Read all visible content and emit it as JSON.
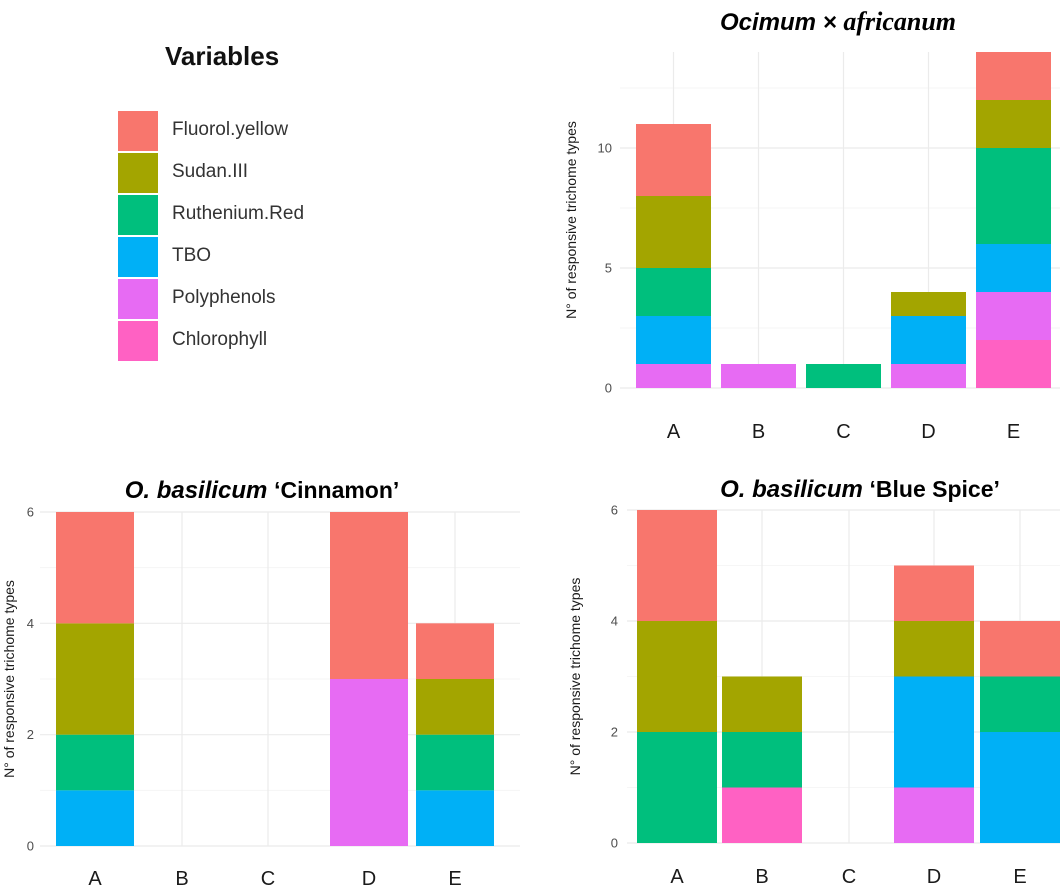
{
  "legend": {
    "title": "Variables",
    "items": [
      {
        "label": "Fluorol.yellow",
        "color": "#F8766D"
      },
      {
        "label": "Sudan.III",
        "color": "#A3A500"
      },
      {
        "label": "Ruthenium.Red",
        "color": "#00BF7D"
      },
      {
        "label": "TBO",
        "color": "#00B0F6"
      },
      {
        "label": "Polyphenols",
        "color": "#E76BF3"
      },
      {
        "label": "Chlorophyll",
        "color": "#FF61C3"
      }
    ]
  },
  "chart_data": [
    {
      "type": "bar",
      "stacked": true,
      "title_parts": [
        {
          "text": "Ocimum × ",
          "style": "sans"
        },
        {
          "text": "africanum",
          "style": "serif"
        }
      ],
      "categories": [
        "A",
        "B",
        "C",
        "D",
        "E"
      ],
      "ylabel": "N° of responsive trichome types",
      "xlabel": "",
      "ylim": [
        0,
        14
      ],
      "yticks": [
        0,
        5,
        10
      ],
      "grid": true,
      "series": [
        {
          "name": "Chlorophyll",
          "color": "#FF61C3",
          "values": [
            0,
            0,
            0,
            0,
            2
          ]
        },
        {
          "name": "Polyphenols",
          "color": "#E76BF3",
          "values": [
            1,
            1,
            0,
            1,
            2
          ]
        },
        {
          "name": "TBO",
          "color": "#00B0F6",
          "values": [
            2,
            0,
            0,
            2,
            2
          ]
        },
        {
          "name": "Ruthenium.Red",
          "color": "#00BF7D",
          "values": [
            2,
            0,
            1,
            0,
            4
          ]
        },
        {
          "name": "Sudan.III",
          "color": "#A3A500",
          "values": [
            3,
            0,
            0,
            1,
            2
          ]
        },
        {
          "name": "Fluorol.yellow",
          "color": "#F8766D",
          "values": [
            3,
            0,
            0,
            0,
            2
          ]
        }
      ]
    },
    {
      "type": "bar",
      "stacked": true,
      "title_parts": [
        {
          "text": "O. basilicum ",
          "style": "italic"
        },
        {
          "text": "‘Cinnamon’",
          "style": "normal"
        }
      ],
      "categories": [
        "A",
        "B",
        "C",
        "D",
        "E"
      ],
      "ylabel": "N° of responsive trichome types",
      "xlabel": "",
      "ylim": [
        0,
        6
      ],
      "yticks": [
        0,
        2,
        4,
        6
      ],
      "grid": true,
      "series": [
        {
          "name": "Chlorophyll",
          "color": "#FF61C3",
          "values": [
            0,
            0,
            0,
            0,
            0
          ]
        },
        {
          "name": "Polyphenols",
          "color": "#E76BF3",
          "values": [
            0,
            0,
            0,
            3,
            0
          ]
        },
        {
          "name": "TBO",
          "color": "#00B0F6",
          "values": [
            1,
            0,
            0,
            0,
            1
          ]
        },
        {
          "name": "Ruthenium.Red",
          "color": "#00BF7D",
          "values": [
            1,
            0,
            0,
            0,
            1
          ]
        },
        {
          "name": "Sudan.III",
          "color": "#A3A500",
          "values": [
            2,
            0,
            0,
            0,
            1
          ]
        },
        {
          "name": "Fluorol.yellow",
          "color": "#F8766D",
          "values": [
            2,
            0,
            0,
            3,
            1
          ]
        }
      ]
    },
    {
      "type": "bar",
      "stacked": true,
      "title_parts": [
        {
          "text": "O. basilicum ",
          "style": "italic"
        },
        {
          "text": "‘Blue Spice’",
          "style": "normal"
        }
      ],
      "categories": [
        "A",
        "B",
        "C",
        "D",
        "E"
      ],
      "ylabel": "N° of responsive trichome types",
      "xlabel": "",
      "ylim": [
        0,
        6
      ],
      "yticks": [
        0,
        2,
        4,
        6
      ],
      "grid": true,
      "series": [
        {
          "name": "Chlorophyll",
          "color": "#FF61C3",
          "values": [
            0,
            1,
            0,
            0,
            0
          ]
        },
        {
          "name": "Polyphenols",
          "color": "#E76BF3",
          "values": [
            0,
            0,
            0,
            1,
            0
          ]
        },
        {
          "name": "TBO",
          "color": "#00B0F6",
          "values": [
            0,
            0,
            0,
            2,
            2
          ]
        },
        {
          "name": "Ruthenium.Red",
          "color": "#00BF7D",
          "values": [
            2,
            1,
            0,
            0,
            1
          ]
        },
        {
          "name": "Sudan.III",
          "color": "#A3A500",
          "values": [
            2,
            1,
            0,
            1,
            0
          ]
        },
        {
          "name": "Fluorol.yellow",
          "color": "#F8766D",
          "values": [
            2,
            0,
            0,
            1,
            1
          ]
        }
      ]
    }
  ]
}
